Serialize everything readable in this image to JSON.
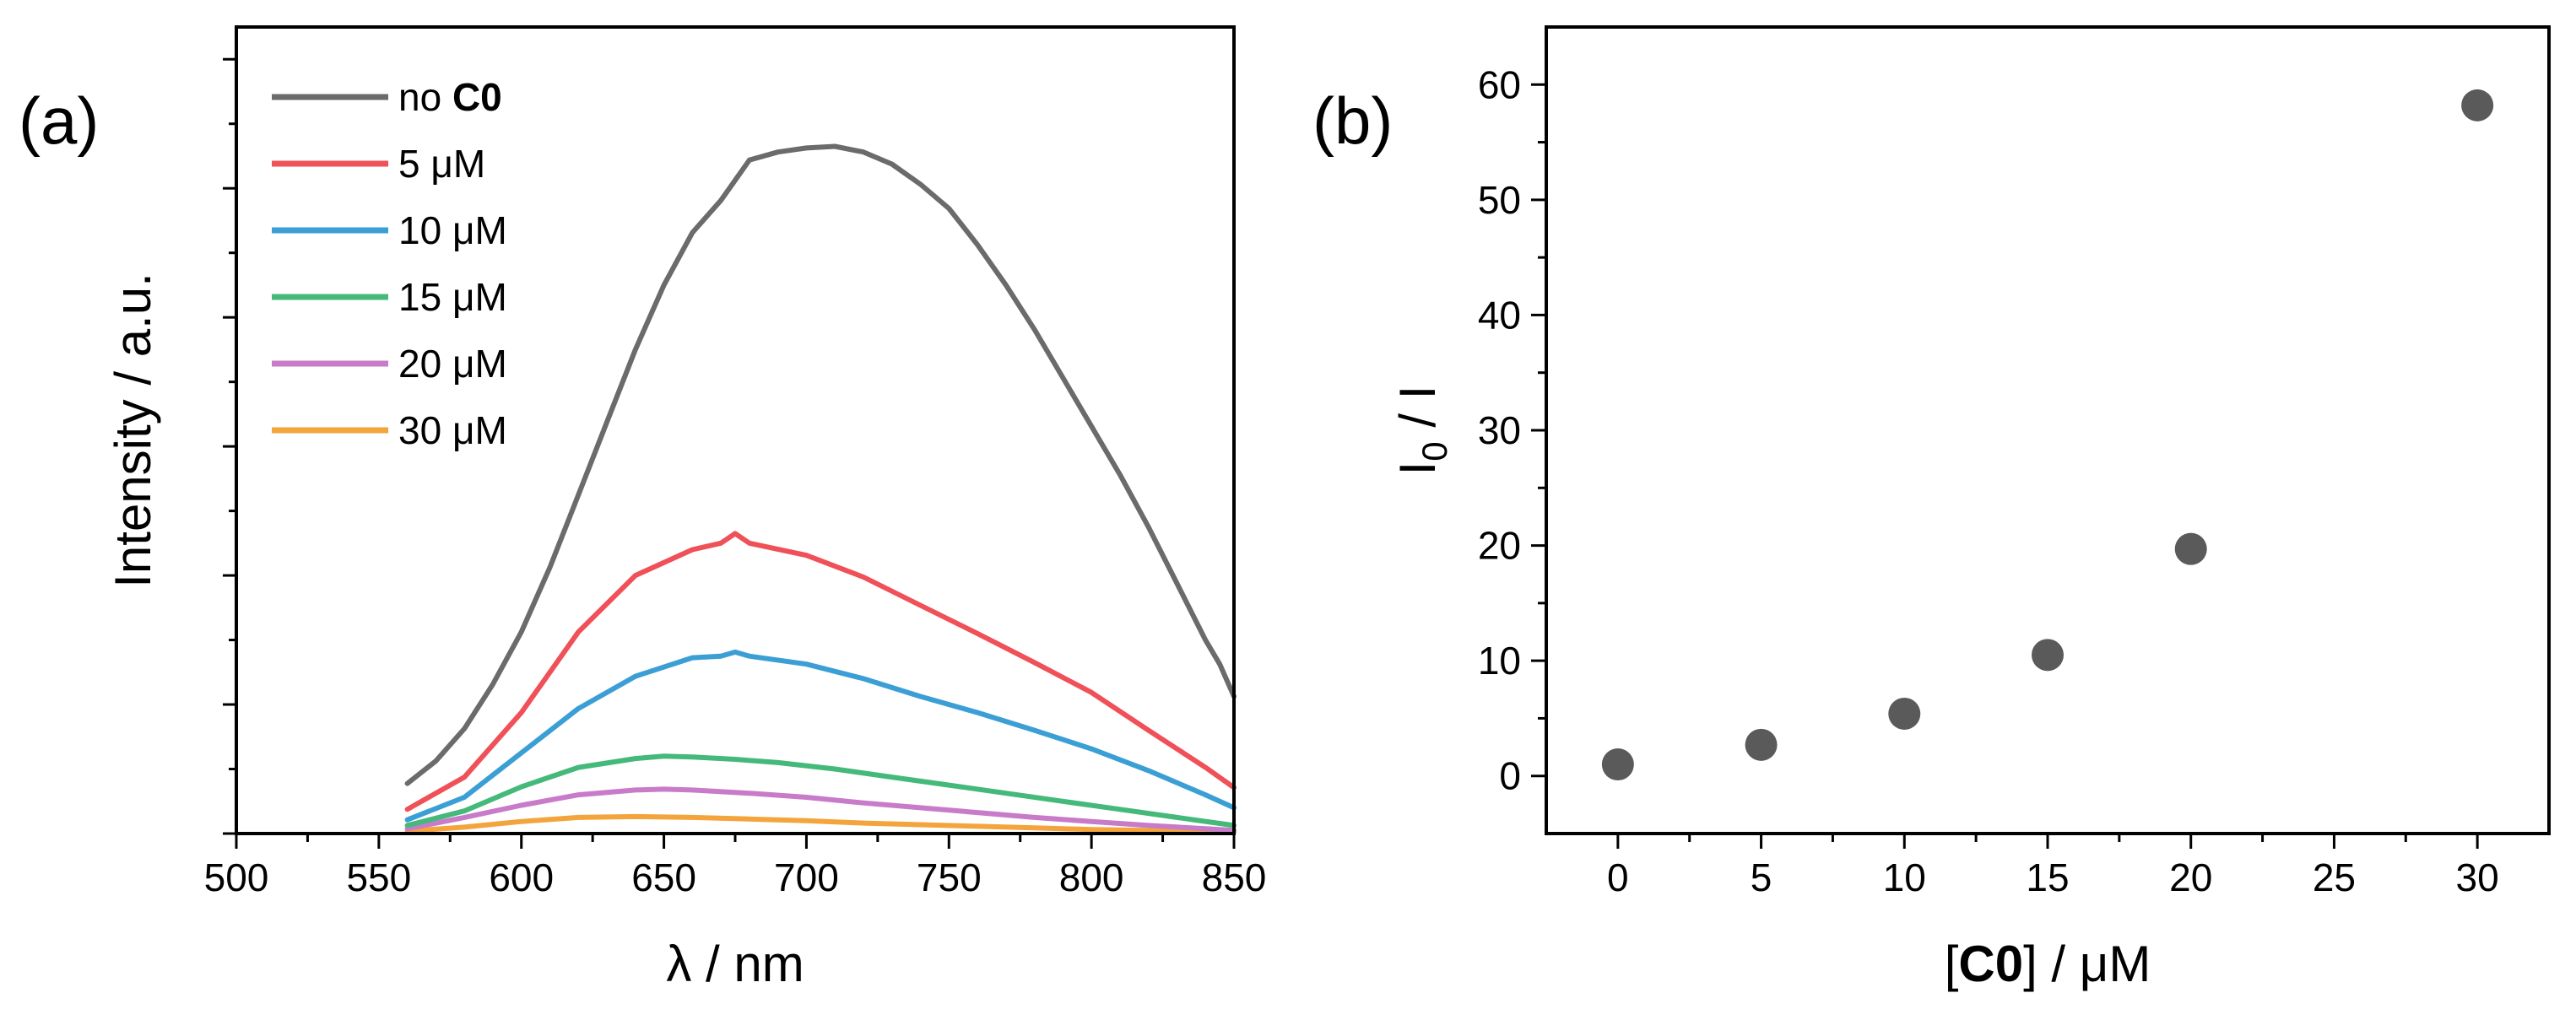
{
  "panels": [
    {
      "label": "(a)"
    },
    {
      "label": "(b)"
    }
  ],
  "chart_data": [
    {
      "type": "line",
      "panel": "(a)",
      "xlabel": "λ / nm",
      "ylabel": "Intensity / a.u.",
      "xlim": [
        500,
        850
      ],
      "ylim": [
        0,
        1000
      ],
      "xticks": [
        500,
        550,
        600,
        650,
        700,
        750,
        800,
        850
      ],
      "xtick_labels": [
        "500",
        "550",
        "600",
        "650",
        "700",
        "750",
        "800",
        "850"
      ],
      "y_tick_labels_shown": false,
      "legend_position": "top-left",
      "series": [
        {
          "name_prefix": "no ",
          "name_bold": "C0",
          "color": "#6b6b6b",
          "x": [
            560,
            570,
            580,
            590,
            600,
            610,
            620,
            630,
            640,
            650,
            660,
            670,
            675,
            680,
            690,
            700,
            710,
            720,
            730,
            740,
            750,
            760,
            770,
            780,
            790,
            800,
            810,
            820,
            830,
            840,
            845,
            850
          ],
          "y": [
            62,
            90,
            130,
            185,
            250,
            330,
            420,
            510,
            600,
            680,
            745,
            785,
            810,
            835,
            845,
            850,
            852,
            845,
            830,
            805,
            775,
            730,
            680,
            625,
            565,
            505,
            445,
            380,
            310,
            240,
            210,
            170
          ]
        },
        {
          "name_prefix": "5 μM",
          "name_bold": "",
          "color": "#f05058",
          "x": [
            560,
            580,
            600,
            620,
            640,
            660,
            670,
            675,
            680,
            700,
            720,
            740,
            760,
            780,
            800,
            820,
            840,
            850
          ],
          "y": [
            30,
            70,
            150,
            250,
            320,
            352,
            360,
            372,
            360,
            345,
            318,
            283,
            248,
            212,
            175,
            128,
            82,
            57
          ]
        },
        {
          "name_prefix": "10 μM",
          "name_bold": "",
          "color": "#3b9fd5",
          "x": [
            560,
            580,
            600,
            620,
            640,
            660,
            670,
            675,
            680,
            700,
            720,
            740,
            760,
            780,
            800,
            820,
            840,
            850
          ],
          "y": [
            17,
            45,
            100,
            155,
            195,
            218,
            220,
            225,
            220,
            210,
            192,
            170,
            150,
            128,
            105,
            78,
            48,
            32
          ]
        },
        {
          "name_prefix": "15 μM",
          "name_bold": "",
          "color": "#44b97a",
          "x": [
            560,
            580,
            600,
            620,
            640,
            650,
            660,
            675,
            690,
            710,
            730,
            750,
            770,
            790,
            810,
            830,
            850
          ],
          "y": [
            10,
            28,
            58,
            82,
            93,
            96,
            95,
            92,
            88,
            80,
            70,
            60,
            50,
            40,
            30,
            20,
            10
          ]
        },
        {
          "name_prefix": "20 μM",
          "name_bold": "",
          "color": "#c77bc9",
          "x": [
            560,
            580,
            600,
            620,
            640,
            650,
            660,
            680,
            700,
            720,
            740,
            760,
            780,
            800,
            820,
            840,
            850
          ],
          "y": [
            6,
            20,
            35,
            48,
            54,
            55,
            54,
            50,
            45,
            38,
            32,
            26,
            20,
            15,
            10,
            6,
            4
          ]
        },
        {
          "name_prefix": "30 μM",
          "name_bold": "",
          "color": "#f4a43c",
          "x": [
            560,
            580,
            600,
            620,
            640,
            660,
            680,
            700,
            720,
            740,
            760,
            780,
            800,
            820,
            850
          ],
          "y": [
            3,
            8,
            15,
            20,
            21,
            20,
            18,
            16,
            13,
            11,
            9,
            7,
            5,
            4,
            2
          ]
        }
      ]
    },
    {
      "type": "scatter",
      "panel": "(b)",
      "xlabel_prefix": "[",
      "xlabel_bold": "C0",
      "xlabel_suffix": "] / μM",
      "ylabel_main": "I",
      "ylabel_sub": "0",
      "ylabel_suffix": " / I",
      "xlim": [
        -2.5,
        32.5
      ],
      "ylim": [
        -5,
        65
      ],
      "xticks": [
        0,
        5,
        10,
        15,
        20,
        25,
        30
      ],
      "xtick_labels": [
        "0",
        "5",
        "10",
        "15",
        "20",
        "25",
        "30"
      ],
      "yticks": [
        0,
        10,
        20,
        30,
        40,
        50,
        60
      ],
      "ytick_labels": [
        "0",
        "10",
        "20",
        "30",
        "40",
        "50",
        "60"
      ],
      "marker_color": "#5a5a5a",
      "x": [
        0,
        5,
        10,
        15,
        20,
        30
      ],
      "y": [
        1,
        2.7,
        5.4,
        10.5,
        19.7,
        58.2
      ]
    }
  ]
}
